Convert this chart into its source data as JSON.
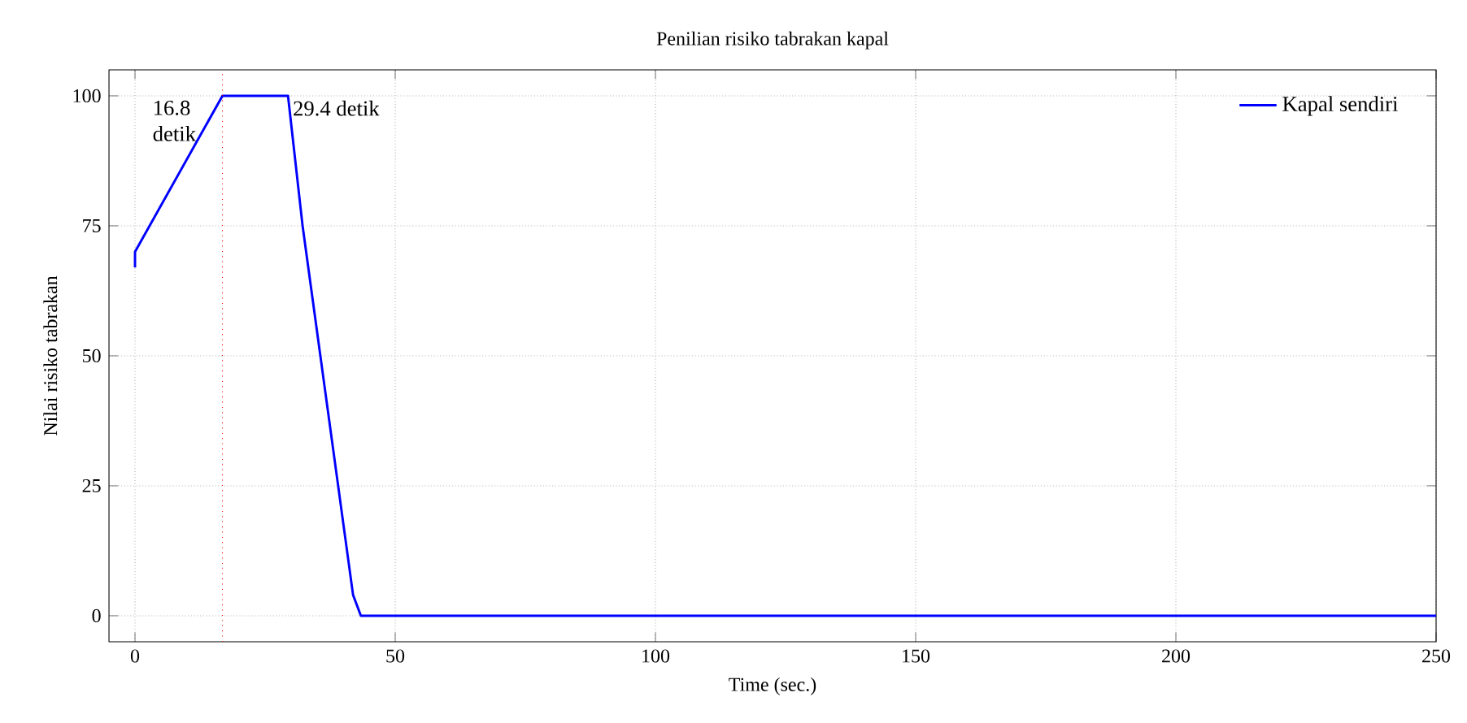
{
  "chart_data": {
    "type": "line",
    "title": "Penilian risiko tabrakan kapal",
    "xlabel": "Time (sec.)",
    "ylabel": "Nilai risiko tabrakan",
    "series": [
      {
        "name": "Kapal sendiri",
        "color": "#0000ff",
        "x": [
          0,
          0,
          16.8,
          29.4,
          32.2,
          41.9,
          43.4,
          250
        ],
        "values": [
          67,
          70,
          100,
          100,
          75,
          4,
          0,
          0
        ]
      }
    ],
    "xlim": [
      -5,
      250
    ],
    "ylim": [
      -5,
      105
    ],
    "xticks": [
      0,
      50,
      100,
      150,
      200,
      250
    ],
    "yticks": [
      0,
      25,
      50,
      75,
      100
    ],
    "grid": true,
    "legend": "top right",
    "line_style": "solid",
    "marker": "none",
    "ref_lines": [
      {
        "axis": "x",
        "value": 16.8,
        "color": "#ff0000",
        "line_style": "dotted"
      }
    ],
    "annotations": [
      {
        "text": "16.8 detik",
        "x": 16.8,
        "y": 100
      },
      {
        "text": "29.4 detik",
        "x": 29.4,
        "y": 100
      }
    ]
  }
}
